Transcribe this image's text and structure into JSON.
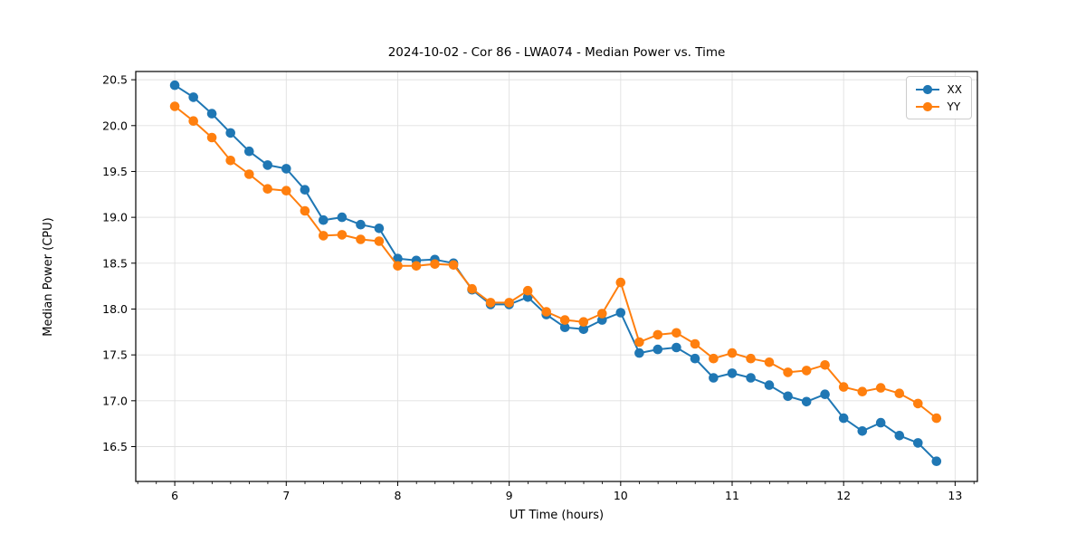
{
  "figure": {
    "title": "2024-10-02 - Cor 86 - LWA074 - Median Power vs. Time",
    "xlabel": "UT Time (hours)",
    "ylabel": "Median Power (CPU)"
  },
  "legend": {
    "items": [
      {
        "label": "XX",
        "color": "#1f77b4"
      },
      {
        "label": "YY",
        "color": "#ff7f0e"
      }
    ]
  },
  "colors": {
    "series_xx": "#1f77b4",
    "series_yy": "#ff7f0e",
    "grid": "#e0e0e0",
    "spine": "#000000",
    "background": "#ffffff"
  },
  "chart_data": {
    "type": "line",
    "title": "2024-10-02 - Cor 86 - LWA074 - Median Power vs. Time",
    "xlabel": "UT Time (hours)",
    "ylabel": "Median Power (CPU)",
    "grid": true,
    "legend_position": "upper right",
    "xlim": [
      5.65,
      13.2
    ],
    "ylim": [
      16.12,
      20.59
    ],
    "xticks": [
      6,
      7,
      8,
      9,
      10,
      11,
      12,
      13
    ],
    "x_minor_step": 0.1667,
    "yticks": [
      16.5,
      17.0,
      17.5,
      18.0,
      18.5,
      19.0,
      19.5,
      20.0,
      20.5
    ],
    "x": [
      6.0,
      6.167,
      6.333,
      6.5,
      6.667,
      6.833,
      7.0,
      7.167,
      7.333,
      7.5,
      7.667,
      7.833,
      8.0,
      8.167,
      8.333,
      8.5,
      8.667,
      8.833,
      9.0,
      9.167,
      9.333,
      9.5,
      9.667,
      9.833,
      10.0,
      10.167,
      10.333,
      10.5,
      10.667,
      10.833,
      11.0,
      11.167,
      11.333,
      11.5,
      11.667,
      11.833,
      12.0,
      12.167,
      12.333,
      12.5,
      12.667,
      12.833
    ],
    "series": [
      {
        "name": "XX",
        "color": "#1f77b4",
        "values": [
          20.44,
          20.31,
          20.13,
          19.92,
          19.72,
          19.57,
          19.53,
          19.3,
          18.97,
          19.0,
          18.92,
          18.88,
          18.55,
          18.53,
          18.54,
          18.5,
          18.21,
          18.05,
          18.05,
          18.13,
          17.94,
          17.8,
          17.78,
          17.88,
          17.96,
          17.52,
          17.56,
          17.58,
          17.46,
          17.25,
          17.3,
          17.25,
          17.17,
          17.05,
          16.99,
          17.07,
          16.81,
          16.67,
          16.76,
          16.62,
          16.54,
          16.34
        ]
      },
      {
        "name": "YY",
        "color": "#ff7f0e",
        "values": [
          20.21,
          20.05,
          19.87,
          19.62,
          19.47,
          19.31,
          19.29,
          19.07,
          18.8,
          18.81,
          18.76,
          18.74,
          18.47,
          18.47,
          18.49,
          18.48,
          18.22,
          18.07,
          18.07,
          18.2,
          17.97,
          17.88,
          17.86,
          17.95,
          18.29,
          17.64,
          17.72,
          17.74,
          17.62,
          17.46,
          17.52,
          17.46,
          17.42,
          17.31,
          17.33,
          17.39,
          17.15,
          17.1,
          17.14,
          17.08,
          16.97,
          16.81
        ]
      }
    ]
  }
}
